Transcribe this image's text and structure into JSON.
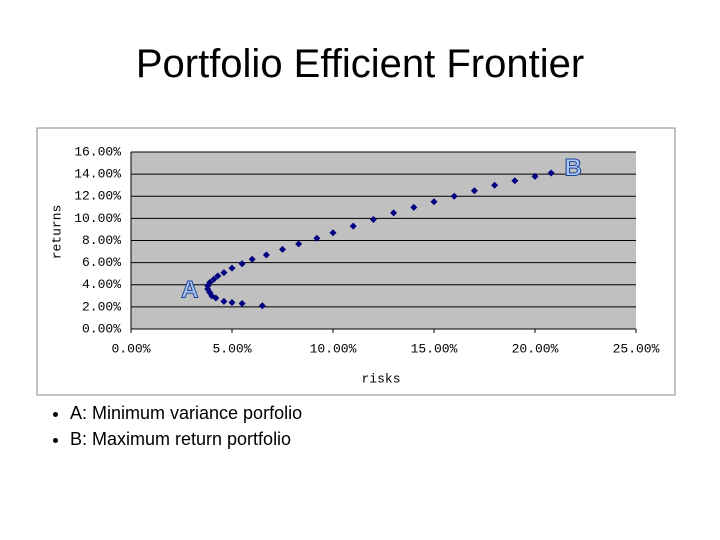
{
  "chart_data": {
    "type": "scatter",
    "title": "Portfolio Efficient Frontier",
    "xlabel": "risks",
    "ylabel": "returns",
    "annotations": [
      "A",
      "B"
    ],
    "color": "#000080",
    "x": [
      6.5,
      5.5,
      5.0,
      4.6,
      4.2,
      4.0,
      3.9,
      3.8,
      3.8,
      3.9,
      4.1,
      4.3,
      4.6,
      5.0,
      5.5,
      6.0,
      6.7,
      7.5,
      8.3,
      9.2,
      10.0,
      11.0,
      12.0,
      13.0,
      14.0,
      15.0,
      16.0,
      17.0,
      18.0,
      19.0,
      20.0,
      20.8
    ],
    "values": [
      2.1,
      2.3,
      2.4,
      2.5,
      2.8,
      3.0,
      3.3,
      3.6,
      3.9,
      4.2,
      4.5,
      4.8,
      5.1,
      5.5,
      5.9,
      6.3,
      6.7,
      7.2,
      7.7,
      8.2,
      8.7,
      9.3,
      9.9,
      10.5,
      11.0,
      11.5,
      12.0,
      12.5,
      13.0,
      13.4,
      13.8,
      14.1
    ],
    "xlim": [
      0,
      25
    ],
    "xticks": [
      {
        "value": 0,
        "label": "0.00%"
      },
      {
        "value": 5,
        "label": "5.00%"
      },
      {
        "value": 10,
        "label": "10.00%"
      },
      {
        "value": 15,
        "label": "15.00%"
      },
      {
        "value": 20,
        "label": "20.00%"
      },
      {
        "value": 25,
        "label": "25.00%"
      }
    ],
    "ylim": [
      0,
      16
    ],
    "yticks": [
      {
        "value": 0,
        "label": "0.00%"
      },
      {
        "value": 2,
        "label": "2.00%"
      },
      {
        "value": 4,
        "label": "4.00%"
      },
      {
        "value": 6,
        "label": "6.00%"
      },
      {
        "value": 8,
        "label": "8.00%"
      },
      {
        "value": 10,
        "label": "10.00%"
      },
      {
        "value": 12,
        "label": "12.00%"
      },
      {
        "value": 14,
        "label": "14.00%"
      },
      {
        "value": 16,
        "label": "16.00%"
      }
    ],
    "grid": true
  },
  "bullets": [
    "A: Minimum variance porfolio",
    "B: Maximum return portfolio"
  ]
}
